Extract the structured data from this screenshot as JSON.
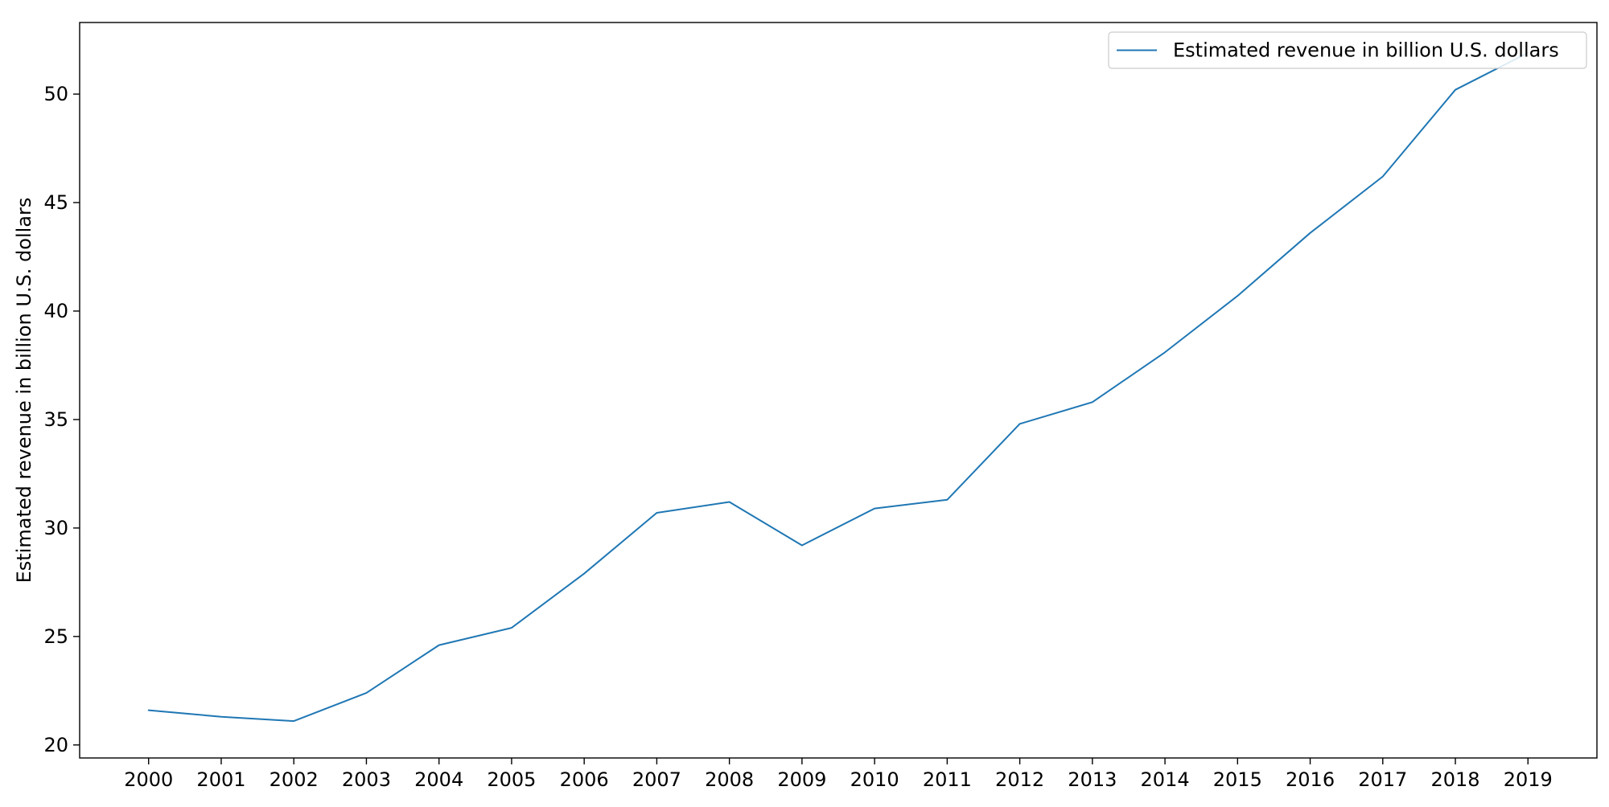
{
  "chart_data": {
    "type": "line",
    "title": "",
    "xlabel": "",
    "ylabel": "Estimated revenue in billion U.S. dollars",
    "x": [
      2000,
      2001,
      2002,
      2003,
      2004,
      2005,
      2006,
      2007,
      2008,
      2009,
      2010,
      2011,
      2012,
      2013,
      2014,
      2015,
      2016,
      2017,
      2018,
      2019
    ],
    "series": [
      {
        "name": "Estimated revenue in billion U.S. dollars",
        "color": "#1f77b4",
        "values": [
          21.6,
          21.3,
          21.1,
          22.4,
          24.6,
          25.4,
          27.9,
          30.7,
          31.2,
          29.2,
          30.9,
          31.3,
          34.8,
          35.8,
          38.1,
          40.7,
          43.6,
          46.2,
          50.2,
          51.9
        ]
      }
    ],
    "xlim": [
      1999.05,
      2019.95
    ],
    "ylim": [
      19.4,
      53.3
    ],
    "xticks": [
      "2000",
      "2001",
      "2002",
      "2003",
      "2004",
      "2005",
      "2006",
      "2007",
      "2008",
      "2009",
      "2010",
      "2011",
      "2012",
      "2013",
      "2014",
      "2015",
      "2016",
      "2017",
      "2018",
      "2019"
    ],
    "yticks": [
      20,
      25,
      30,
      35,
      40,
      45,
      50
    ],
    "grid": false,
    "legend_position": "top-right"
  }
}
